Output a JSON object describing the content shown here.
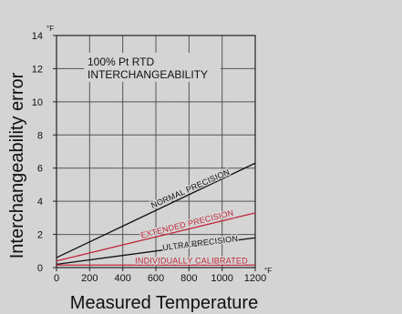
{
  "chart_data": {
    "type": "line",
    "title_lines": [
      "100% Pt RTD",
      "INTERCHANGEABILITY"
    ],
    "xlabel": "Measured Temperature",
    "ylabel": "Interchangeability error",
    "x_unit": "°F",
    "y_unit": "°F",
    "xlim": [
      0,
      1200
    ],
    "ylim": [
      0,
      14
    ],
    "x_ticks": [
      0,
      200,
      400,
      600,
      800,
      1000,
      1200
    ],
    "y_ticks": [
      0,
      2,
      4,
      6,
      8,
      10,
      12,
      14
    ],
    "grid": true,
    "series": [
      {
        "name": "NORMAL PRECISION",
        "color": "#111111",
        "x": [
          0,
          1200
        ],
        "y": [
          0.6,
          6.3
        ]
      },
      {
        "name": "EXTENDED PRECISION",
        "color": "#c0283a",
        "x": [
          0,
          1200
        ],
        "y": [
          0.4,
          3.3
        ]
      },
      {
        "name": "ULTRA PRECISION",
        "color": "#111111",
        "x": [
          0,
          1200
        ],
        "y": [
          0.2,
          1.8
        ]
      },
      {
        "name": "INDIVIDUALLY CALIBRATED",
        "color": "#c0283a",
        "x": [
          0,
          1200
        ],
        "y": [
          0.15,
          0.15
        ]
      }
    ]
  }
}
